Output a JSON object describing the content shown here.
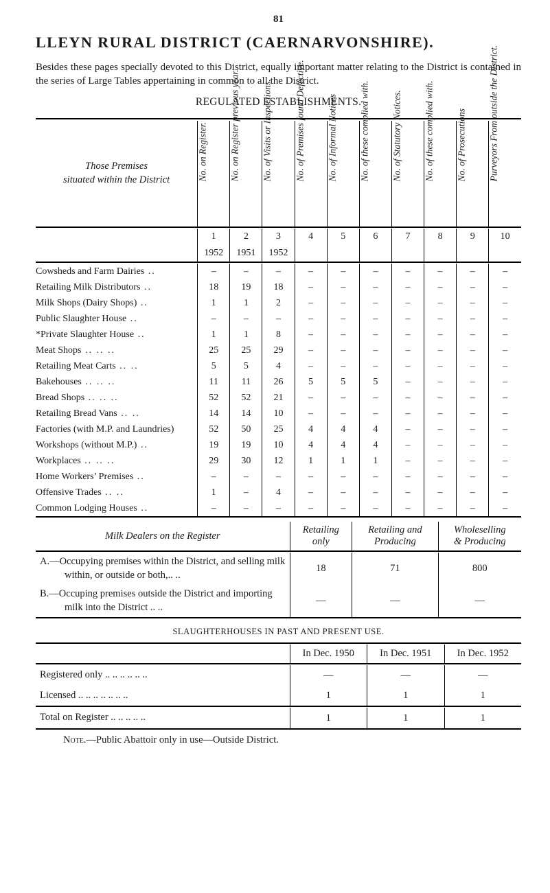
{
  "page_number": "81",
  "title": "LLEYN  RURAL  DISTRICT   (CAERNARVONSHIRE).",
  "intro": "Besides these pages specially devoted to this District, equally important matter relating to the District is contained in the series of Large Tables appertaining in common to all the District.",
  "reg_heading": "REGULATED ESTABLISHMENTS.",
  "row_stub_heading_l1": "Those Premises",
  "row_stub_heading_l2": "situated within the District",
  "col_headers": [
    "No. on Register.",
    "No. on Register\nprevious year.",
    "No. of Visits or\nInspections.",
    "No. of Premises\nfound Defective.",
    "No. of Informal\nNotices",
    "No. of these\ncomplied with.",
    "No. of Statutory\nNotices.",
    "No. of these\ncomplied with.",
    "No. of Prosecutions",
    "Purveyors From\noutside the District."
  ],
  "num_row_top": [
    "1",
    "2",
    "3",
    "4",
    "5",
    "6",
    "7",
    "8",
    "9",
    "10"
  ],
  "num_row_bot": [
    "1952",
    "1951",
    "1952",
    "",
    "",
    "",
    "",
    "",
    "",
    ""
  ],
  "rows": [
    {
      "label": "Cowsheds and Farm Dairies",
      "dots": "      ..",
      "cells": [
        "–",
        "–",
        "–",
        "–",
        "–",
        "–",
        "–",
        "–",
        "–",
        "–"
      ]
    },
    {
      "label": "Retailing Milk Distributors",
      "dots": "     ..",
      "cells": [
        "18",
        "19",
        "18",
        "–",
        "–",
        "–",
        "–",
        "–",
        "–",
        "–"
      ]
    },
    {
      "label": "Milk Shops (Dairy Shops)",
      "dots": "       ..",
      "cells": [
        "1",
        "1",
        "2",
        "–",
        "–",
        "–",
        "–",
        "–",
        "–",
        "–"
      ]
    },
    {
      "label": "Public Slaughter House",
      "dots": "          ..",
      "cells": [
        "–",
        "–",
        "–",
        "–",
        "–",
        "–",
        "–",
        "–",
        "–",
        "–"
      ]
    },
    {
      "label": "*Private Slaughter House",
      "dots": "        ..",
      "cells": [
        "1",
        "1",
        "8",
        "–",
        "–",
        "–",
        "–",
        "–",
        "–",
        "–"
      ]
    },
    {
      "label": "Meat Shops",
      "dots": "         ..     ..     ..",
      "cells": [
        "25",
        "25",
        "29",
        "–",
        "–",
        "–",
        "–",
        "–",
        "–",
        "–"
      ]
    },
    {
      "label": "Retailing Meat Carts",
      "dots": "       ..     ..",
      "cells": [
        "5",
        "5",
        "4",
        "–",
        "–",
        "–",
        "–",
        "–",
        "–",
        "–"
      ]
    },
    {
      "label": "Bakehouses",
      "dots": "          ..     ..     ..",
      "cells": [
        "11",
        "11",
        "26",
        "5",
        "5",
        "5",
        "–",
        "–",
        "–",
        "–"
      ]
    },
    {
      "label": "Bread Shops",
      "dots": "        ..     ..     ..",
      "cells": [
        "52",
        "52",
        "21",
        "–",
        "–",
        "–",
        "–",
        "–",
        "–",
        "–"
      ]
    },
    {
      "label": "Retailing Bread Vans",
      "dots": "       ..     ..",
      "cells": [
        "14",
        "14",
        "10",
        "–",
        "–",
        "–",
        "–",
        "–",
        "–",
        "–"
      ]
    },
    {
      "label": "Factories (with M.P. and Laundries)",
      "dots": "",
      "cells": [
        "52",
        "50",
        "25",
        "4",
        "4",
        "4",
        "–",
        "–",
        "–",
        "–"
      ]
    },
    {
      "label": "Workshops (without M.P.)",
      "dots": "      ..",
      "cells": [
        "19",
        "19",
        "10",
        "4",
        "4",
        "4",
        "–",
        "–",
        "–",
        "–"
      ]
    },
    {
      "label": "Workplaces",
      "dots": "          ..     ..     ..",
      "cells": [
        "29",
        "30",
        "12",
        "1",
        "1",
        "1",
        "–",
        "–",
        "–",
        "–"
      ]
    },
    {
      "label": "Home Workers’ Premises",
      "dots": "        ..",
      "cells": [
        "–",
        "–",
        "–",
        "–",
        "–",
        "–",
        "–",
        "–",
        "–",
        "–"
      ]
    },
    {
      "label": "Offensive Trades",
      "dots": "          ..     ..",
      "cells": [
        "1",
        "–",
        "4",
        "–",
        "–",
        "–",
        "–",
        "–",
        "–",
        "–"
      ]
    },
    {
      "label": "Common Lodging Houses",
      "dots": "       ..",
      "cells": [
        "–",
        "–",
        "–",
        "–",
        "–",
        "–",
        "–",
        "–",
        "–",
        "–"
      ]
    }
  ],
  "milk_header_stub": "Milk Dealers on the Register",
  "milk_cols": [
    "Retailing\nonly",
    "Retailing and\nProducing",
    "Wholeselling\n& Producing"
  ],
  "milk_rowA": "A.—Occupying premises within the District, and selling milk within, or outside or both,..      ..",
  "milk_rowB": "B.—Occuping premises outside the District and importing milk into the District   ..     ..",
  "milk_valsA": [
    "18",
    "71",
    "800"
  ],
  "milk_valsB": [
    "—",
    "—",
    "—"
  ],
  "sl_heading": "SLAUGHTERHOUSES IN PAST AND PRESENT USE.",
  "sl_cols": [
    "In Dec. 1950",
    "In Dec. 1951",
    "In Dec. 1952"
  ],
  "sl_rows": [
    {
      "label": "Registered only  ..     ..     ..     ..     ..     ..",
      "cells": [
        "—",
        "—",
        "—"
      ]
    },
    {
      "label": "Licensed  ..      ..     ..     ..     ..     ..     ..",
      "cells": [
        "1",
        "1",
        "1"
      ]
    }
  ],
  "sl_total_label": "Total on Register          ..     ..     ..     ..     ..",
  "sl_total_cells": [
    "1",
    "1",
    "1"
  ],
  "footnote_lead": "Note.",
  "footnote_rest": "—Public Abattoir only in use—Outside District."
}
